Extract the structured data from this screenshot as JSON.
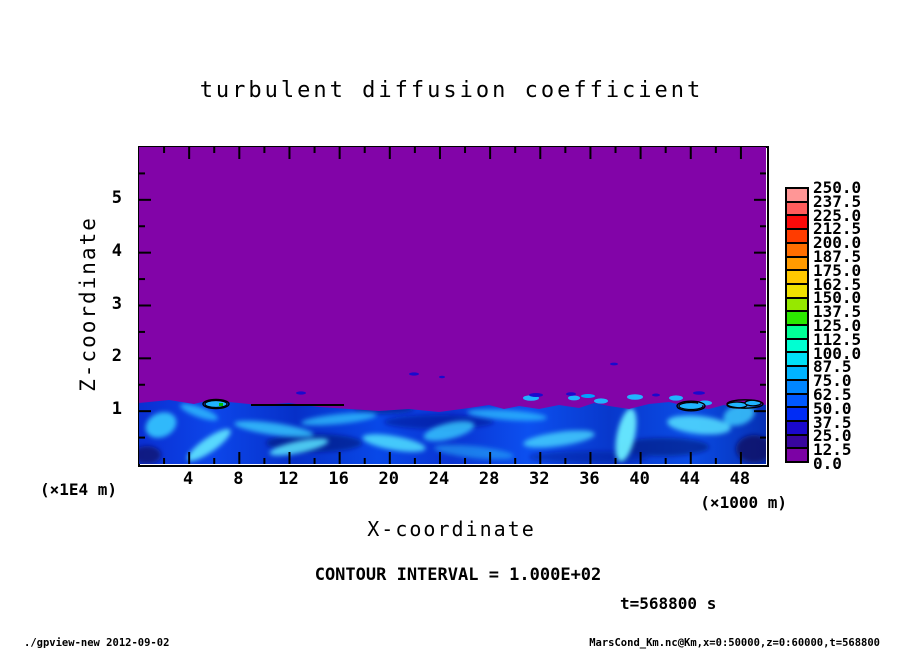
{
  "header": {
    "title": "turbulent diffusion coefficient"
  },
  "axes": {
    "x_label": "X-coordinate",
    "z_label": "Z-coordinate",
    "x_unit": "(×1000 m)",
    "z_unit": "(×1E4 m)"
  },
  "notes": {
    "contour_interval": "CONTOUR INTERVAL = 1.000E+02",
    "time_label": "t=568800 s"
  },
  "footer": {
    "left": "./gpview-new  2012-09-02",
    "right": "MarsCond_Km.nc@Km,x=0:50000,z=0:60000,t=568800"
  },
  "chart_data": {
    "type": "heatmap",
    "title": "turbulent diffusion coefficient",
    "xlabel": "X-coordinate",
    "ylabel": "Z-coordinate",
    "x_range_m": [
      0,
      50000
    ],
    "z_range_m": [
      0,
      60000
    ],
    "x_axis_multiplier": "×1000 m",
    "z_axis_multiplier": "×1E4 m",
    "x_major_ticks": [
      4,
      8,
      12,
      16,
      20,
      24,
      28,
      32,
      36,
      40,
      44,
      48
    ],
    "z_major_ticks": [
      1,
      2,
      3,
      4,
      5
    ],
    "x_minor_step": 2,
    "z_minor_step": 0.5,
    "xlim": [
      0,
      50
    ],
    "zlim": [
      0,
      6
    ],
    "contour_interval": 100.0,
    "time_s": 568800,
    "field_summary": {
      "upper_region": "uniform lowest bin 0.0–12.5 (purple) above boundary layer top",
      "boundary_layer_top_z": 1.05,
      "lower_region": "turbulent mixed layer below z≈1 (×1E4 m) with values ≈25–100 (blue–cyan streaks)",
      "small_detached_patches_z": [
        1.1,
        1.4,
        1.7,
        1.9
      ]
    },
    "colorbar": {
      "levels_top_to_bottom": [
        "250.0",
        "237.5",
        "225.0",
        "212.5",
        "200.0",
        "187.5",
        "175.0",
        "162.5",
        "150.0",
        "137.5",
        "125.0",
        "112.5",
        "100.0",
        "87.5",
        "75.0",
        "62.5",
        "50.0",
        "37.5",
        "25.0",
        "12.5",
        "0.0"
      ],
      "colors_bottom_to_top": [
        "#7c02a5",
        "#38059e",
        "#1a08cd",
        "#002cf5",
        "#0058ff",
        "#0086ff",
        "#00b4ff",
        "#00e0f8",
        "#00ffd2",
        "#00ff96",
        "#2ce800",
        "#96e800",
        "#f0e000",
        "#ffc800",
        "#ff9b00",
        "#ff6e00",
        "#ff3c00",
        "#fa0a0a",
        "#ff5c5c",
        "#ff9696"
      ]
    },
    "plot_colors": {
      "background_field": "#8204a8",
      "band_base_blue": "#0a38d8",
      "streak_cyan": "#55e0ff",
      "contour_line": "#000000"
    },
    "legend_position": "right",
    "grid": false
  }
}
